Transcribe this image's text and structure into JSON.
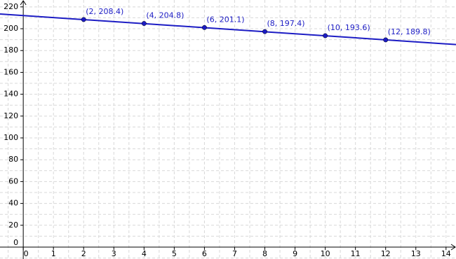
{
  "chart_data": {
    "type": "scatter",
    "series": [
      {
        "name": null,
        "color": "#1c1cc4",
        "x": [
          2,
          4,
          6,
          8,
          10,
          12
        ],
        "values": [
          208.4,
          204.8,
          201.1,
          197.4,
          193.6,
          189.8
        ],
        "value_labels": [
          "(2, 208.4)",
          "(4, 204.8)",
          "(6, 201.1)",
          "(8, 197.4)",
          "(10, 193.6)",
          "(12, 189.8)"
        ]
      }
    ],
    "line": {
      "color": "#1c1cc4",
      "x": [
        -0.77,
        14.33
      ],
      "values": [
        213.5,
        185.5
      ]
    },
    "xlim": [
      -0.77,
      14.33
    ],
    "ylim": [
      -10.9,
      226.3
    ],
    "xticks": [
      0,
      1,
      2,
      3,
      4,
      5,
      6,
      7,
      8,
      9,
      10,
      11,
      12,
      13,
      14
    ],
    "yticks": [
      0,
      20,
      40,
      60,
      80,
      100,
      120,
      140,
      160,
      180,
      200,
      220
    ],
    "grid": true
  }
}
